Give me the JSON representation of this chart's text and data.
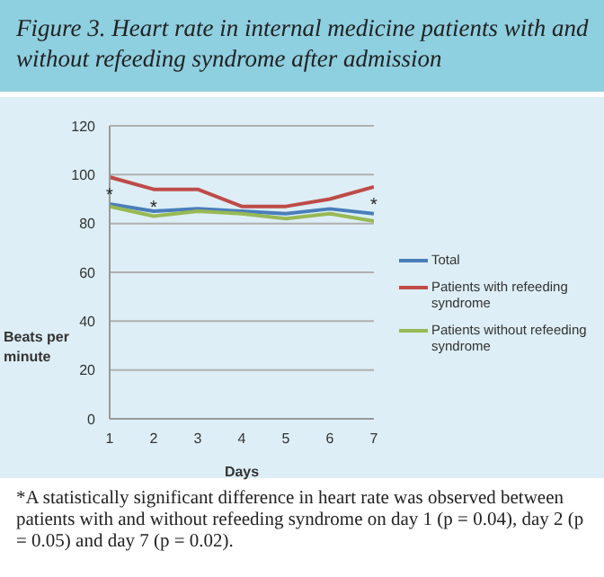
{
  "chart_data": {
    "type": "line",
    "title": "Figure 3. Heart rate in internal medicine patients with and without refeeding syndrome after admission",
    "xlabel": "Days",
    "ylabel": "Beats per minute",
    "x": [
      1,
      2,
      3,
      4,
      5,
      6,
      7
    ],
    "xlim": [
      1,
      7
    ],
    "xticks": [
      1,
      2,
      3,
      4,
      5,
      6,
      7
    ],
    "ylim": [
      0,
      120
    ],
    "yticks": [
      0,
      20,
      40,
      60,
      80,
      100,
      120
    ],
    "grid": "y",
    "legend": "right",
    "marker": "none",
    "line_style": "solid",
    "series": [
      {
        "name": "Total",
        "color": "#4a7ebb",
        "values": [
          88,
          85,
          86,
          85,
          84,
          86,
          84
        ]
      },
      {
        "name": "Patients with refeeding syndrome",
        "color": "#be4b48",
        "values": [
          99,
          94,
          94,
          87,
          87,
          90,
          95
        ]
      },
      {
        "name": "Patients without refeeding syndrome",
        "color": "#98b954",
        "values": [
          87,
          83,
          85,
          84,
          82,
          84,
          81
        ]
      }
    ],
    "annotations": [
      {
        "text": "*",
        "x": 1,
        "y": 99
      },
      {
        "text": "*",
        "x": 2,
        "y": 94
      },
      {
        "text": "*",
        "x": 7,
        "y": 95
      },
      "*A statistically significant difference in heart rate was observed between patients with and without refeeding syndrome on day 1 (p = 0.04), day 2 (p = 0.05) and day 7 (p = 0.02)."
    ]
  }
}
